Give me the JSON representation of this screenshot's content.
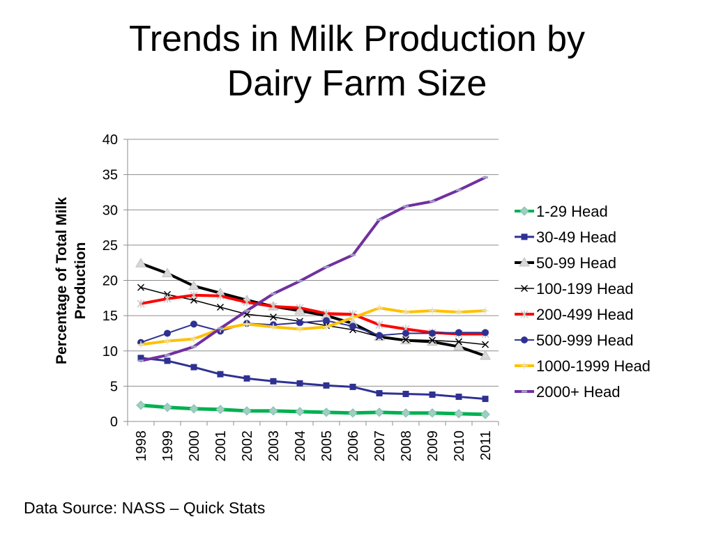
{
  "slide": {
    "title_line1": "Trends in Milk Production by",
    "title_line2": "Dairy Farm Size",
    "source": "Data Source:  NASS – Quick Stats"
  },
  "chart_data": {
    "type": "line",
    "title": "Trends in Milk Production by Dairy Farm Size",
    "xlabel": "",
    "ylabel": "Percentage of Total Milk Production",
    "ylabel_lines": [
      "Percentage of Total Milk",
      "Production"
    ],
    "ylim": [
      0,
      40
    ],
    "yticks": [
      0,
      5,
      10,
      15,
      20,
      25,
      30,
      35,
      40
    ],
    "grid": true,
    "legend": "right",
    "categories": [
      "1998",
      "1999",
      "2000",
      "2001",
      "2002",
      "2003",
      "2004",
      "2005",
      "2006",
      "2007",
      "2008",
      "2009",
      "2010",
      "2011"
    ],
    "series": [
      {
        "name": "1-29 Head",
        "color": "#00b050",
        "marker": "diamond",
        "marker_color": "#9fcfc0",
        "width": 5,
        "values": [
          2.3,
          2.0,
          1.8,
          1.7,
          1.5,
          1.5,
          1.4,
          1.3,
          1.2,
          1.3,
          1.2,
          1.2,
          1.1,
          1.0
        ]
      },
      {
        "name": "30-49 Head",
        "color": "#2e3192",
        "marker": "square",
        "marker_color": "#2e3192",
        "width": 3,
        "values": [
          9.0,
          8.6,
          7.7,
          6.7,
          6.1,
          5.7,
          5.4,
          5.1,
          4.9,
          4.0,
          3.9,
          3.8,
          3.5,
          3.2
        ]
      },
      {
        "name": "50-99 Head",
        "color": "#000000",
        "marker": "triangle",
        "marker_color": "#d9d9d9",
        "width": 4,
        "values": [
          22.4,
          21.0,
          19.2,
          18.2,
          17.2,
          16.3,
          15.7,
          15.0,
          13.9,
          12.0,
          11.5,
          11.3,
          10.6,
          9.3
        ]
      },
      {
        "name": "100-199 Head",
        "color": "#000000",
        "marker": "x",
        "marker_color": "#000000",
        "width": 1.5,
        "values": [
          19.0,
          18.0,
          17.2,
          16.2,
          15.2,
          14.8,
          14.2,
          13.6,
          13.0,
          12.0,
          11.6,
          11.5,
          11.3,
          10.9
        ]
      },
      {
        "name": "200-499 Head",
        "color": "#ff0000",
        "marker": "star",
        "marker_color": "#c8c8c8",
        "width": 4,
        "values": [
          16.7,
          17.4,
          17.9,
          17.8,
          16.9,
          16.3,
          16.1,
          15.3,
          15.2,
          13.7,
          13.1,
          12.6,
          12.4,
          12.4
        ]
      },
      {
        "name": "500-999 Head",
        "color": "#2e3192",
        "marker": "circle",
        "marker_color": "#2e3192",
        "width": 2,
        "values": [
          11.2,
          12.5,
          13.8,
          12.8,
          13.9,
          13.7,
          14.0,
          14.3,
          13.5,
          12.2,
          12.5,
          12.5,
          12.6,
          12.6
        ]
      },
      {
        "name": "1000-1999 Head",
        "color": "#ffc000",
        "marker": "plus",
        "marker_color": "#e6e6c8",
        "width": 4,
        "values": [
          10.9,
          11.4,
          11.7,
          13.1,
          13.8,
          13.4,
          13.1,
          13.4,
          14.7,
          16.1,
          15.5,
          15.7,
          15.5,
          15.7
        ]
      },
      {
        "name": "2000+ Head",
        "color": "#7030a0",
        "marker": "dash",
        "marker_color": "#a0a0c8",
        "width": 4,
        "values": [
          8.6,
          9.4,
          10.6,
          13.2,
          15.7,
          18.1,
          19.9,
          21.9,
          23.6,
          28.6,
          30.5,
          31.2,
          32.8,
          34.6
        ]
      }
    ]
  }
}
